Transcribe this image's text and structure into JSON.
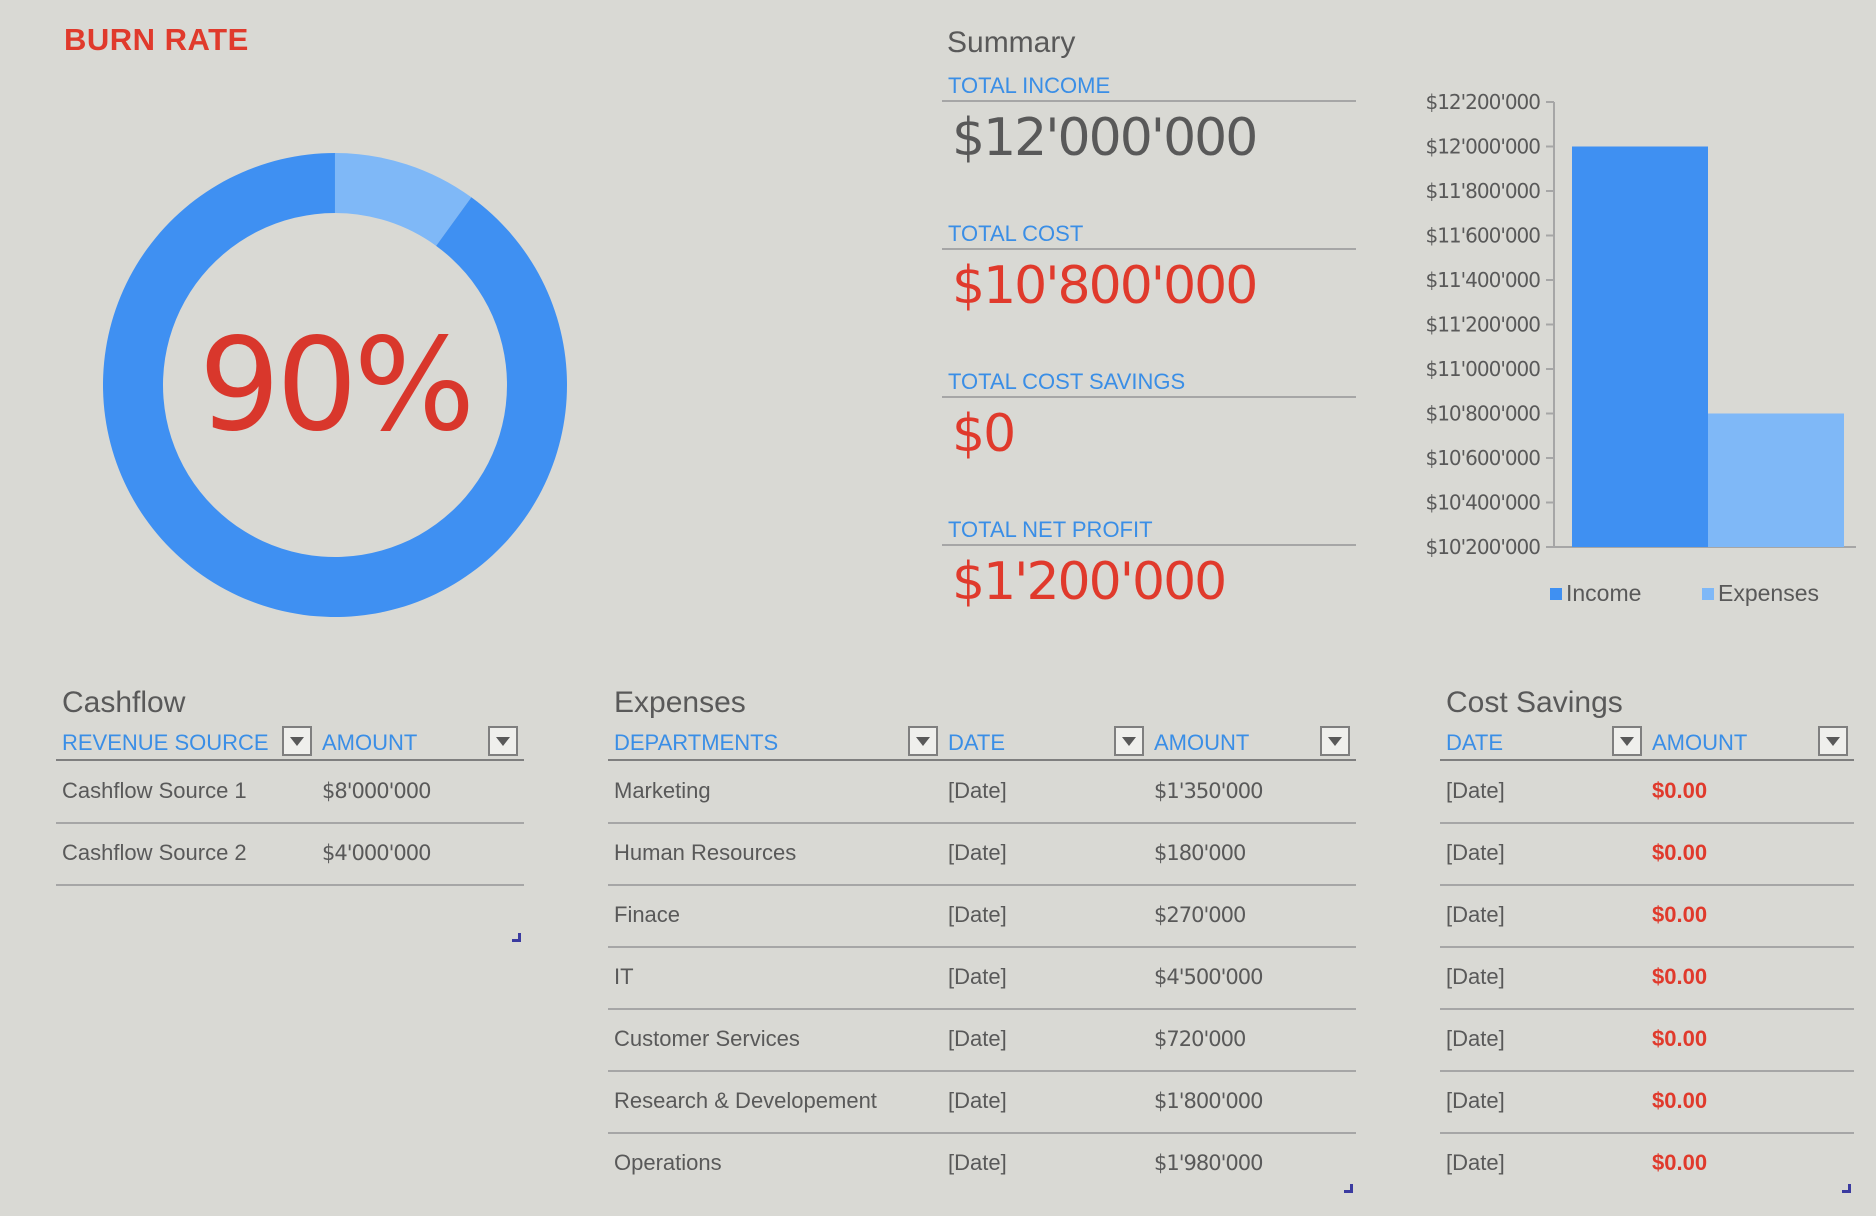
{
  "burn_rate": {
    "title": "BURN RATE",
    "percent_label": "90%",
    "percent_value": 90
  },
  "colors": {
    "primary_blue": "#3f90f2",
    "light_blue": "#7fb8f7",
    "accent_red": "#e03a2c",
    "label_blue": "#3a8ee6"
  },
  "summary": {
    "title": "Summary",
    "items": [
      {
        "label": "TOTAL  INCOME",
        "value": "$12'000'000",
        "tone": "gray"
      },
      {
        "label": "TOTAL COST",
        "value": "$10'800'000",
        "tone": "red"
      },
      {
        "label": "TOTAL COST SAVINGS",
        "value": "$0",
        "tone": "red"
      },
      {
        "label": "TOTAL NET PROFIT",
        "value": "$1'200'000",
        "tone": "red"
      }
    ]
  },
  "chart_data": {
    "type": "bar",
    "categories": [
      ""
    ],
    "series": [
      {
        "name": "Income",
        "values": [
          12000000
        ]
      },
      {
        "name": "Expenses",
        "values": [
          10800000
        ]
      }
    ],
    "ylim": [
      10200000,
      12200000
    ],
    "yticks": [
      10200000,
      10400000,
      10600000,
      10800000,
      11000000,
      11200000,
      11400000,
      11600000,
      11800000,
      12000000,
      12200000
    ],
    "ytick_labels": [
      "$10'200'000",
      "$10'400'000",
      "$10'600'000",
      "$10'800'000",
      "$11'000'000",
      "$11'200'000",
      "$11'400'000",
      "$11'600'000",
      "$11'800'000",
      "$12'000'000",
      "$12'200'000"
    ],
    "legend": "bottom",
    "grid": false
  },
  "cashflow": {
    "title": "Cashflow",
    "columns": [
      "REVENUE SOURCE",
      "AMOUNT"
    ],
    "rows": [
      {
        "source": "Cashflow Source 1",
        "amount": "$8'000'000"
      },
      {
        "source": "Cashflow Source 2",
        "amount": "$4'000'000"
      }
    ]
  },
  "expenses": {
    "title": "Expenses",
    "columns": [
      "DEPARTMENTS",
      "DATE",
      "AMOUNT"
    ],
    "rows": [
      {
        "dept": "Marketing",
        "date": "[Date]",
        "amount": "$1'350'000"
      },
      {
        "dept": "Human Resources",
        "date": "[Date]",
        "amount": "$180'000"
      },
      {
        "dept": "Finace",
        "date": "[Date]",
        "amount": "$270'000"
      },
      {
        "dept": "IT",
        "date": "[Date]",
        "amount": "$4'500'000"
      },
      {
        "dept": "Customer Services",
        "date": "[Date]",
        "amount": "$720'000"
      },
      {
        "dept": "Research & Developement",
        "date": "[Date]",
        "amount": "$1'800'000"
      },
      {
        "dept": "Operations",
        "date": "[Date]",
        "amount": "$1'980'000"
      }
    ]
  },
  "cost_savings": {
    "title": "Cost Savings",
    "columns": [
      "DATE",
      "AMOUNT"
    ],
    "rows": [
      {
        "date": "[Date]",
        "amount": "$0.00"
      },
      {
        "date": "[Date]",
        "amount": "$0.00"
      },
      {
        "date": "[Date]",
        "amount": "$0.00"
      },
      {
        "date": "[Date]",
        "amount": "$0.00"
      },
      {
        "date": "[Date]",
        "amount": "$0.00"
      },
      {
        "date": "[Date]",
        "amount": "$0.00"
      },
      {
        "date": "[Date]",
        "amount": "$0.00"
      }
    ]
  }
}
